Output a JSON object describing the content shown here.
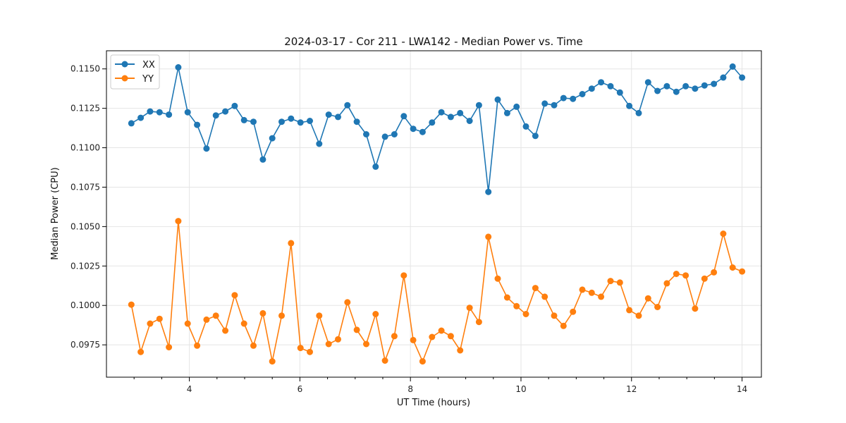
{
  "chart_data": {
    "type": "line",
    "title": "2024-03-17 - Cor 211 - LWA142 - Median Power vs. Time",
    "xlabel": "UT Time (hours)",
    "ylabel": "Median Power (CPU)",
    "xlim": [
      2.5,
      14.35
    ],
    "ylim": [
      0.09545,
      0.11615
    ],
    "xticks": [
      4,
      6,
      8,
      10,
      12,
      14
    ],
    "xtick_labels": [
      "4",
      "6",
      "8",
      "10",
      "12",
      "14"
    ],
    "yticks": [
      0.0975,
      0.1,
      0.1025,
      0.105,
      0.1075,
      0.11,
      0.1125,
      0.115
    ],
    "ytick_labels": [
      "0.0975",
      "0.1000",
      "0.1025",
      "0.1050",
      "0.1075",
      "0.1100",
      "0.1125",
      "0.1150"
    ],
    "grid": true,
    "legend_position": "top-left",
    "x": [
      2.95,
      3.12,
      3.29,
      3.46,
      3.63,
      3.8,
      3.97,
      4.14,
      4.31,
      4.48,
      4.65,
      4.82,
      4.99,
      5.16,
      5.33,
      5.5,
      5.67,
      5.84,
      6.01,
      6.18,
      6.35,
      6.52,
      6.69,
      6.86,
      7.03,
      7.2,
      7.37,
      7.54,
      7.71,
      7.88,
      8.05,
      8.22,
      8.39,
      8.56,
      8.73,
      8.9,
      9.07,
      9.24,
      9.41,
      9.58,
      9.75,
      9.92,
      10.09,
      10.26,
      10.43,
      10.6,
      10.77,
      10.94,
      11.11,
      11.28,
      11.45,
      11.62,
      11.79,
      11.96,
      12.13,
      12.3,
      12.47,
      12.64,
      12.81,
      12.98,
      13.15,
      13.32,
      13.49,
      13.66,
      13.83
    ],
    "series": [
      {
        "name": "XX",
        "color": "#1f77b4",
        "values": [
          0.11155,
          0.1119,
          0.1123,
          0.11225,
          0.1121,
          0.1151,
          0.11225,
          0.11145,
          0.10995,
          0.11205,
          0.1123,
          0.11265,
          0.11175,
          0.11165,
          0.10925,
          0.1106,
          0.11165,
          0.11185,
          0.1116,
          0.1117,
          0.11025,
          0.1121,
          0.11195,
          0.1127,
          0.11165,
          0.11085,
          0.1088,
          0.1107,
          0.11085,
          0.112,
          0.1112,
          0.111,
          0.1116,
          0.11225,
          0.11195,
          0.1122,
          0.1117,
          0.1127,
          0.1072,
          0.11305,
          0.1122,
          0.1126,
          0.11135,
          0.11075,
          0.1128,
          0.1127,
          0.11315,
          0.1131,
          0.1134,
          0.11375,
          0.11415,
          0.1139,
          0.1135,
          0.11265,
          0.1122,
          0.11415,
          0.1136,
          0.1139,
          0.11355,
          0.1139,
          0.11375,
          0.11395,
          0.11405,
          0.11445,
          0.11515
        ],
        "values_tail": 0.11445
      },
      {
        "name": "YY",
        "color": "#ff7f0e",
        "values": [
          0.10005,
          0.09705,
          0.09885,
          0.09915,
          0.09735,
          0.10535,
          0.09885,
          0.09745,
          0.0991,
          0.09935,
          0.0984,
          0.10065,
          0.09885,
          0.09745,
          0.0995,
          0.09645,
          0.09935,
          0.10395,
          0.0973,
          0.09705,
          0.09935,
          0.09755,
          0.09785,
          0.1002,
          0.09845,
          0.09755,
          0.09945,
          0.0965,
          0.09805,
          0.1019,
          0.0978,
          0.09645,
          0.098,
          0.0984,
          0.09805,
          0.09715,
          0.09985,
          0.09895,
          0.10435,
          0.1017,
          0.1005,
          0.09995,
          0.09945,
          0.1011,
          0.10055,
          0.09935,
          0.0987,
          0.0996,
          0.101,
          0.1008,
          0.10055,
          0.10155,
          0.10145,
          0.0997,
          0.09935,
          0.10045,
          0.0999,
          0.1014,
          0.102,
          0.1019,
          0.0998,
          0.1017,
          0.1021,
          0.10455,
          0.1024
        ],
        "values_tail": 0.10215
      }
    ]
  }
}
